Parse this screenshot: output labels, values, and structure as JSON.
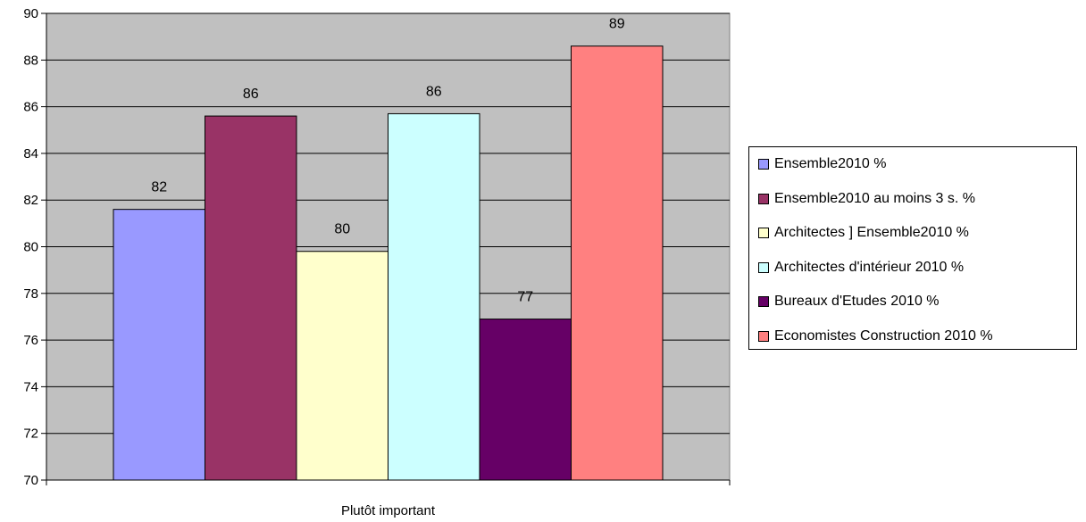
{
  "chart_data": {
    "type": "bar",
    "categories": [
      "Plutôt important"
    ],
    "ylim": [
      70,
      90
    ],
    "yticks": [
      70,
      72,
      74,
      76,
      78,
      80,
      82,
      84,
      86,
      88,
      90
    ],
    "ytick_labels": [
      "70",
      "72",
      "74",
      "76",
      "78",
      "80",
      "82",
      "84",
      "86",
      "88",
      "90"
    ],
    "grid": true,
    "legend_position": "right",
    "plot_background": "#c0c0c0",
    "series": [
      {
        "name": "Ensemble2010 %",
        "values": [
          81.6
        ],
        "label": "82",
        "color": "#9999ff"
      },
      {
        "name": "Ensemble2010 au moins 3 s. %",
        "values": [
          85.6
        ],
        "label": "86",
        "color": "#993366"
      },
      {
        "name": "Architectes ] Ensemble2010 %",
        "values": [
          79.8
        ],
        "label": "80",
        "color": "#ffffcc"
      },
      {
        "name": "Architectes  d'intérieur 2010 %",
        "values": [
          85.7
        ],
        "label": "86",
        "color": "#ccffff"
      },
      {
        "name": "Bureaux d'Etudes 2010 %",
        "values": [
          76.9
        ],
        "label": "77",
        "color": "#660066"
      },
      {
        "name": "Economistes  Construction 2010 %",
        "values": [
          88.6
        ],
        "label": "89",
        "color": "#ff8080"
      }
    ]
  }
}
